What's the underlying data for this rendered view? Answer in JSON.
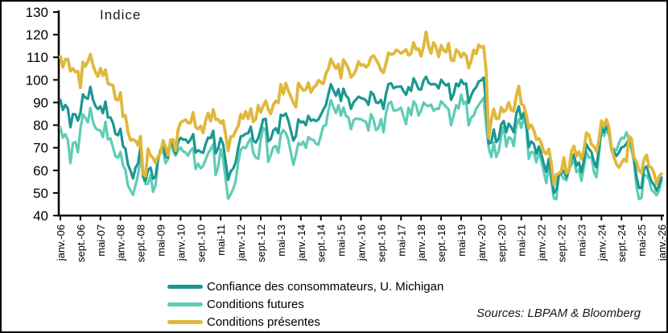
{
  "title": "Indice",
  "source_note": "Sources: LBPAM & Bloomberg",
  "colors": {
    "confiance": "#1b9791",
    "futures": "#5fccb5",
    "presentes": "#e0b83c",
    "axis": "#000000"
  },
  "legend": [
    {
      "key": "confiance",
      "label": "Confiance des consommateurs, U. Michigan"
    },
    {
      "key": "futures",
      "label": "Conditions futures"
    },
    {
      "key": "presentes",
      "label": "Conditions présentes"
    }
  ],
  "chart_data": {
    "type": "line",
    "title": "Indice",
    "xlabel": "",
    "ylabel": "Indice",
    "ylim": [
      40,
      130
    ],
    "y_ticks": [
      130,
      120,
      110,
      100,
      90,
      80,
      70,
      60,
      50,
      40
    ],
    "grid": false,
    "legend_position": "bottom",
    "x_unit": "month",
    "x_start": "janv.-06",
    "x_end": "janv.-26",
    "x_tick_interval_months": 8,
    "x_tick_labels": [
      "janv.-06",
      "sept.-06",
      "mai-07",
      "janv.-08",
      "sept.-08",
      "mai-09",
      "janv.-10",
      "sept.-10",
      "mai-11",
      "janv.-12",
      "sept.-12",
      "mai-13",
      "janv.-14",
      "sept.-14",
      "mai-15",
      "janv.-16",
      "sept.-16",
      "mai-17",
      "janv.-18",
      "sept.-18",
      "mai-19",
      "janv.-20",
      "sept.-20",
      "mai-21",
      "janv.-22",
      "sept.-22",
      "mai-23",
      "janv.-24",
      "sept.-24",
      "mai-25",
      "janv.-26"
    ],
    "draw_order": [
      1,
      0,
      2
    ],
    "series": [
      {
        "name": "Confiance des consommateurs, U. Michigan",
        "color": "#1b9791",
        "values": [
          91.2,
          86.7,
          88.9,
          87.4,
          79.1,
          84.9,
          84.7,
          82.0,
          85.4,
          93.6,
          92.1,
          91.7,
          96.9,
          91.3,
          88.4,
          87.1,
          88.3,
          85.3,
          90.4,
          83.4,
          83.4,
          80.9,
          76.1,
          75.5,
          78.4,
          70.8,
          69.5,
          62.6,
          59.8,
          56.4,
          61.2,
          63.0,
          70.3,
          57.6,
          55.3,
          60.1,
          61.2,
          56.3,
          57.3,
          65.1,
          68.7,
          70.8,
          66.0,
          65.7,
          73.5,
          70.6,
          67.4,
          72.5,
          74.4,
          73.6,
          73.6,
          72.2,
          73.6,
          76.0,
          67.8,
          68.9,
          68.2,
          67.7,
          71.6,
          74.5,
          74.2,
          77.5,
          67.5,
          69.8,
          74.3,
          71.5,
          63.7,
          55.8,
          59.5,
          60.8,
          63.7,
          69.9,
          75.0,
          75.3,
          76.2,
          76.4,
          79.3,
          73.2,
          72.3,
          74.3,
          78.3,
          82.6,
          82.7,
          72.9,
          73.8,
          77.6,
          78.6,
          76.4,
          84.5,
          84.1,
          85.1,
          82.1,
          77.5,
          73.2,
          75.1,
          82.5,
          81.2,
          81.6,
          80.0,
          84.1,
          81.9,
          82.5,
          81.8,
          82.5,
          84.6,
          86.9,
          88.8,
          93.6,
          98.1,
          95.4,
          93.0,
          95.9,
          90.7,
          96.1,
          93.1,
          91.9,
          87.2,
          90.0,
          91.3,
          92.6,
          92.0,
          91.7,
          91.0,
          89.0,
          94.7,
          93.5,
          90.0,
          89.8,
          91.2,
          87.2,
          93.8,
          98.2,
          98.5,
          96.3,
          96.9,
          97.0,
          97.1,
          95.0,
          93.4,
          96.8,
          95.1,
          100.7,
          98.5,
          95.9,
          95.7,
          99.7,
          101.4,
          98.8,
          98.0,
          98.2,
          97.9,
          96.2,
          100.1,
          98.6,
          97.5,
          98.3,
          91.2,
          93.8,
          98.4,
          97.2,
          100.0,
          98.2,
          98.4,
          89.8,
          93.2,
          95.5,
          96.8,
          99.3,
          99.8,
          101.0,
          89.1,
          71.8,
          72.3,
          78.1,
          72.5,
          74.1,
          80.4,
          81.8,
          76.9,
          80.7,
          79.0,
          76.8,
          84.9,
          88.3,
          82.9,
          85.5,
          81.2,
          70.3,
          72.8,
          71.7,
          67.4,
          70.6,
          67.2,
          62.8,
          59.4,
          65.2,
          58.4,
          50.0,
          51.5,
          58.2,
          58.6,
          59.9,
          56.8,
          59.7,
          64.9,
          67.0,
          62.0,
          63.5,
          59.2,
          64.4,
          71.6,
          69.5,
          68.1,
          63.8,
          61.3,
          69.7,
          79.0,
          76.9,
          79.4,
          77.2,
          69.1,
          68.2,
          66.4,
          67.9,
          70.1,
          70.5,
          71.8,
          74.0,
          71.7,
          64.7,
          57.0,
          52.2,
          52.2,
          60.7,
          61.7,
          58.2,
          55.1,
          53.6,
          51.0,
          53.4,
          56.8
        ]
      },
      {
        "name": "Conditions futures",
        "color": "#5fccb5",
        "values": [
          78.9,
          74.5,
          76.0,
          73.4,
          63.2,
          72.0,
          72.5,
          68.0,
          78.2,
          84.8,
          83.2,
          81.2,
          87.6,
          81.5,
          78.7,
          77.9,
          77.6,
          74.7,
          81.5,
          73.7,
          74.1,
          70.1,
          66.2,
          65.6,
          68.1,
          62.4,
          60.1,
          53.3,
          51.1,
          49.2,
          53.5,
          57.9,
          67.2,
          57.0,
          53.9,
          54.0,
          57.8,
          50.5,
          53.5,
          64.4,
          69.4,
          69.2,
          63.2,
          65.0,
          73.5,
          68.6,
          66.5,
          68.9,
          70.1,
          68.4,
          67.9,
          66.5,
          68.8,
          69.8,
          60.6,
          62.9,
          60.9,
          61.9,
          64.8,
          67.5,
          69.3,
          71.6,
          57.9,
          61.6,
          69.5,
          64.8,
          56.0,
          47.4,
          49.4,
          51.8,
          55.4,
          63.6,
          69.1,
          70.3,
          69.8,
          72.3,
          74.3,
          67.8,
          65.6,
          65.1,
          73.5,
          78.8,
          77.6,
          63.8,
          66.6,
          70.2,
          70.8,
          67.8,
          75.8,
          77.8,
          76.5,
          73.7,
          67.8,
          62.5,
          66.8,
          72.1,
          71.2,
          72.7,
          70.0,
          74.7,
          73.7,
          73.5,
          71.8,
          71.3,
          75.4,
          79.6,
          79.9,
          86.4,
          91.0,
          88.0,
          85.3,
          88.8,
          84.2,
          87.8,
          84.1,
          83.4,
          78.2,
          82.1,
          82.9,
          82.7,
          82.7,
          81.9,
          81.5,
          77.6,
          84.9,
          82.4,
          77.8,
          78.7,
          82.7,
          76.8,
          85.2,
          89.5,
          90.3,
          86.5,
          86.5,
          87.0,
          87.7,
          83.9,
          80.5,
          87.7,
          84.4,
          90.5,
          88.9,
          84.3,
          86.3,
          90.0,
          88.8,
          88.4,
          89.1,
          86.3,
          87.3,
          87.1,
          90.5,
          89.3,
          88.1,
          87.0,
          79.9,
          84.4,
          88.8,
          87.4,
          93.5,
          89.3,
          90.5,
          79.9,
          83.4,
          84.2,
          87.3,
          88.9,
          90.5,
          92.1,
          79.7,
          70.1,
          65.9,
          72.3,
          65.9,
          68.5,
          75.6,
          79.2,
          70.5,
          74.6,
          74.0,
          70.7,
          79.7,
          82.7,
          78.8,
          83.5,
          79.0,
          65.1,
          68.1,
          67.9,
          63.5,
          68.3,
          64.1,
          59.4,
          54.3,
          62.5,
          55.2,
          47.5,
          47.3,
          58.0,
          58.0,
          56.2,
          55.6,
          59.9,
          62.7,
          64.7,
          59.2,
          60.5,
          55.4,
          61.5,
          68.3,
          65.5,
          66.0,
          59.3,
          56.9,
          67.4,
          77.1,
          75.2,
          77.4,
          76.0,
          68.8,
          69.6,
          68.8,
          72.1,
          74.4,
          74.1,
          76.9,
          73.3,
          69.3,
          64.0,
          52.6,
          47.3,
          47.9,
          58.1,
          57.7,
          55.9,
          51.4,
          50.3,
          49.0,
          51.0,
          55.6
        ]
      },
      {
        "name": "Conditions présentes",
        "color": "#e0b83c",
        "values": [
          110.3,
          105.6,
          109.1,
          109.2,
          103.9,
          105.0,
          103.5,
          103.8,
          96.6,
          107.8,
          106.0,
          108.1,
          111.3,
          106.6,
          103.5,
          101.5,
          105.1,
          101.9,
          104.5,
          98.4,
          97.9,
          97.6,
          91.5,
          91.0,
          94.4,
          83.8,
          84.2,
          77.0,
          73.3,
          73.6,
          73.1,
          71.0,
          75.0,
          58.4,
          57.5,
          69.5,
          66.5,
          65.5,
          63.3,
          66.1,
          67.7,
          73.2,
          70.5,
          66.6,
          73.4,
          73.7,
          68.8,
          78.0,
          81.1,
          81.8,
          82.4,
          81.0,
          81.0,
          85.6,
          79.1,
          78.3,
          79.6,
          76.6,
          82.1,
          85.3,
          81.8,
          86.9,
          82.5,
          82.5,
          80.9,
          82.0,
          75.8,
          68.7,
          74.9,
          75.1,
          77.6,
          79.6,
          84.8,
          83.0,
          86.0,
          82.9,
          87.2,
          81.5,
          82.7,
          88.7,
          85.7,
          88.6,
          90.7,
          87.0,
          85.0,
          89.0,
          90.7,
          89.9,
          98.0,
          93.8,
          98.6,
          95.2,
          92.6,
          89.9,
          88.0,
          98.6,
          96.8,
          95.4,
          95.7,
          98.7,
          94.5,
          96.6,
          97.4,
          99.8,
          98.9,
          98.3,
          102.7,
          104.8,
          109.3,
          106.9,
          105.0,
          107.0,
          100.8,
          108.9,
          107.2,
          105.1,
          101.2,
          102.3,
          104.3,
          108.1,
          106.4,
          106.8,
          105.6,
          106.7,
          109.9,
          110.8,
          109.0,
          107.0,
          104.2,
          103.2,
          107.3,
          111.9,
          111.3,
          111.5,
          113.2,
          112.7,
          111.7,
          112.5,
          113.4,
          110.9,
          111.7,
          116.5,
          113.5,
          113.8,
          110.5,
          114.9,
          121.2,
          114.9,
          111.8,
          116.5,
          114.4,
          110.3,
          115.2,
          113.1,
          112.3,
          116.1,
          108.8,
          108.5,
          113.3,
          112.3,
          110.0,
          111.9,
          110.7,
          105.3,
          108.5,
          113.2,
          111.6,
          115.5,
          114.4,
          114.8,
          103.7,
          74.3,
          82.3,
          87.1,
          82.8,
          82.9,
          87.8,
          85.9,
          87.0,
          90.0,
          86.7,
          86.2,
          93.0,
          97.2,
          89.4,
          88.6,
          84.5,
          78.5,
          80.1,
          77.7,
          73.6,
          74.2,
          72.0,
          68.2,
          67.2,
          69.4,
          63.3,
          53.8,
          58.1,
          58.6,
          59.7,
          65.6,
          58.8,
          59.4,
          68.4,
          70.7,
          66.3,
          68.2,
          64.9,
          69.0,
          76.6,
          75.7,
          71.4,
          70.6,
          68.3,
          73.3,
          81.9,
          79.4,
          82.5,
          79.0,
          69.6,
          65.9,
          62.7,
          61.3,
          63.3,
          64.9,
          63.9,
          75.1,
          74.0,
          65.7,
          63.8,
          59.8,
          58.9,
          64.8,
          66.8,
          61.7,
          61.2,
          58.6,
          54.0,
          57.2,
          58.5
        ]
      }
    ]
  }
}
